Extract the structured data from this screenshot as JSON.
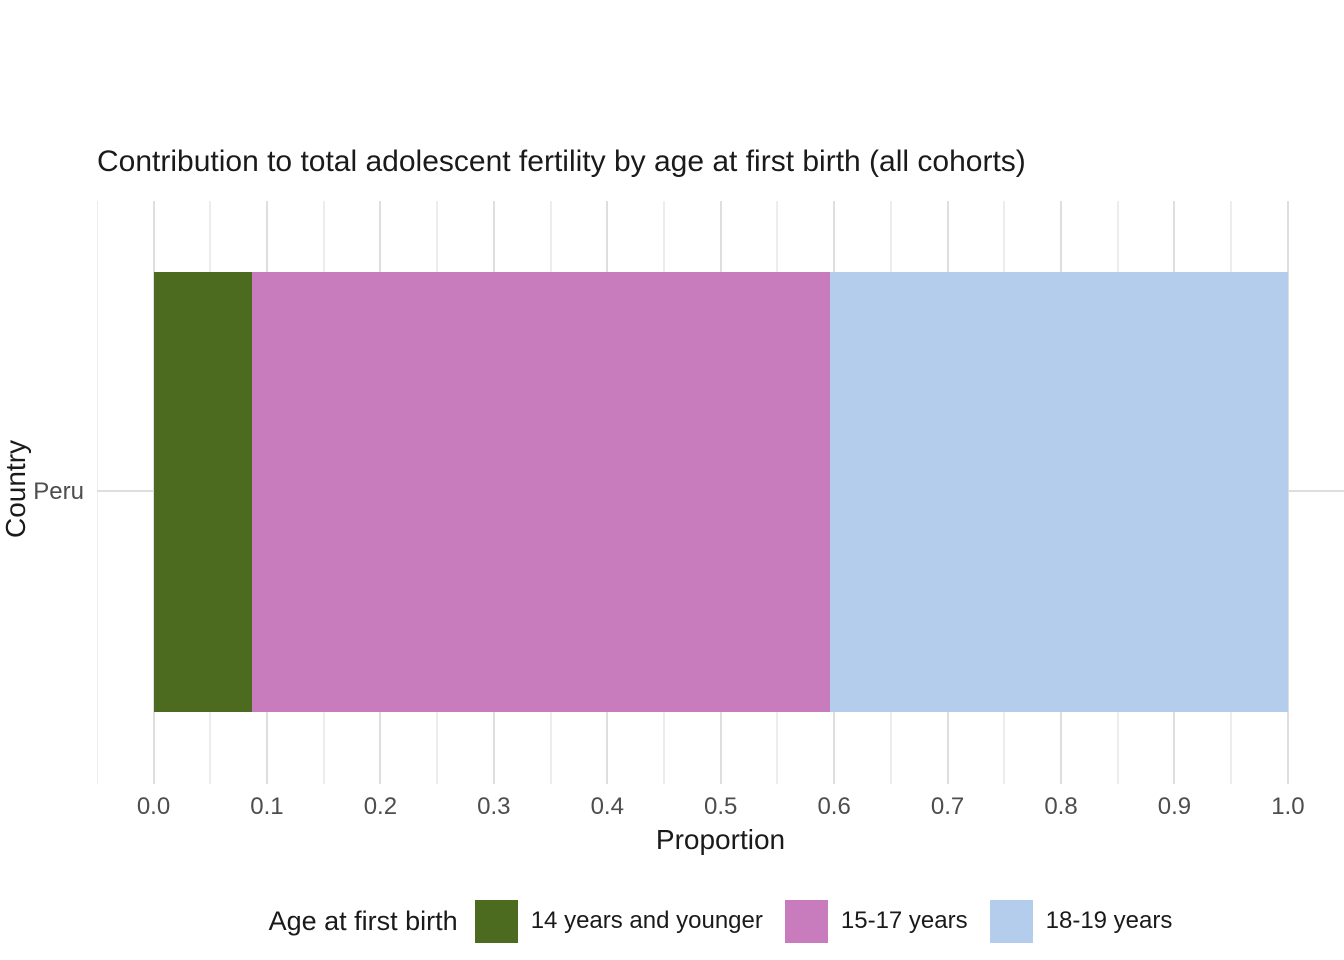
{
  "chart_data": {
    "type": "bar",
    "orientation": "horizontal",
    "stacked": true,
    "title": "Contribution to total adolescent fertility by age at first birth (all cohorts)",
    "xlabel": "Proportion",
    "ylabel": "Country",
    "categories": [
      "Peru"
    ],
    "series": [
      {
        "name": "14 years and younger",
        "color": "#4D6B1F",
        "values": [
          0.087
        ]
      },
      {
        "name": "15-17 years",
        "color": "#C87CBE",
        "values": [
          0.509
        ]
      },
      {
        "name": "18-19 years",
        "color": "#B5CDEC",
        "values": [
          0.404
        ]
      }
    ],
    "xlim": [
      0,
      1
    ],
    "xticks": [
      0,
      0.1,
      0.2,
      0.3,
      0.4,
      0.5,
      0.6,
      0.7,
      0.8,
      0.9,
      1
    ],
    "xtick_labels": [
      "0.0",
      "0.1",
      "0.2",
      "0.3",
      "0.4",
      "0.5",
      "0.6",
      "0.7",
      "0.8",
      "0.9",
      "1.0"
    ],
    "legend_title": "Age at first birth",
    "legend_position": "bottom",
    "grid": {
      "vertical_major": true,
      "vertical_minor": true,
      "horizontal_major": true
    },
    "colors": {
      "background": "#FFFFFF",
      "grid_major": "#DEDEDE",
      "grid_minor": "#EDEDED",
      "tick_text": "#4D4D4D",
      "text": "#1A1A1A"
    }
  }
}
